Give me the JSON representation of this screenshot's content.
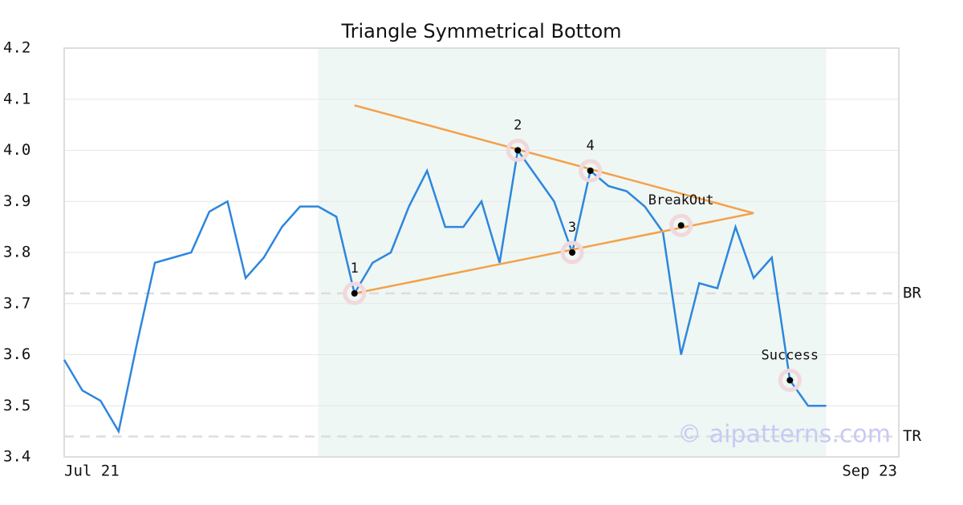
{
  "chart_data": {
    "type": "line",
    "title": "Triangle Symmetrical Bottom",
    "x": [
      0,
      1,
      2,
      3,
      4,
      5,
      6,
      7,
      8,
      9,
      10,
      11,
      12,
      13,
      14,
      15,
      16,
      17,
      18,
      19,
      20,
      21,
      22,
      23,
      24,
      25,
      26,
      27,
      28,
      29,
      30,
      31,
      32,
      33,
      34,
      35,
      36,
      37,
      38,
      39,
      40,
      41,
      42
    ],
    "series": [
      {
        "color": "#2e86de",
        "values": [
          3.59,
          3.53,
          3.51,
          3.45,
          3.62,
          3.78,
          3.79,
          3.8,
          3.88,
          3.9,
          3.75,
          3.79,
          3.85,
          3.89,
          3.89,
          3.87,
          3.72,
          3.78,
          3.8,
          3.89,
          3.96,
          3.85,
          3.85,
          3.9,
          3.78,
          4.0,
          3.95,
          3.9,
          3.8,
          3.96,
          3.93,
          3.92,
          3.89,
          3.84,
          3.6,
          3.74,
          3.73,
          3.85,
          3.75,
          3.79,
          3.55,
          3.5,
          3.5
        ]
      }
    ],
    "xlim": [
      0,
      46
    ],
    "xticks": [
      {
        "value": 0,
        "label": "Jul 21"
      },
      {
        "value": 46,
        "label": "Sep 23"
      }
    ],
    "ylim": [
      3.4,
      4.2
    ],
    "yticks": [
      3.4,
      3.5,
      3.6,
      3.7,
      3.8,
      3.9,
      {
        "value": 4,
        "label": "4.0"
      },
      4.1,
      4.2
    ],
    "grid": true,
    "shaded_range": [
      14,
      42
    ],
    "pattern_lines": [
      {
        "x": [
          16,
          38
        ],
        "y": [
          4.088,
          3.877
        ],
        "color": "#f5a04a"
      },
      {
        "x": [
          16,
          38
        ],
        "y": [
          3.72,
          3.877
        ],
        "color": "#f5a04a"
      }
    ],
    "points": [
      {
        "label": "1",
        "x": 16,
        "y": 3.72
      },
      {
        "label": "2",
        "x": 25,
        "y": 4.0
      },
      {
        "label": "3",
        "x": 28,
        "y": 3.8
      },
      {
        "label": "4",
        "x": 29,
        "y": 3.96
      },
      {
        "label": "BreakOut",
        "x": 34,
        "y": 3.853
      },
      {
        "label": "Success",
        "x": 40,
        "y": 3.55
      }
    ],
    "hlines": [
      {
        "label": "BR",
        "value": 3.72
      },
      {
        "label": "TR",
        "value": 3.44
      }
    ],
    "watermark": "© aipatterns.com"
  }
}
